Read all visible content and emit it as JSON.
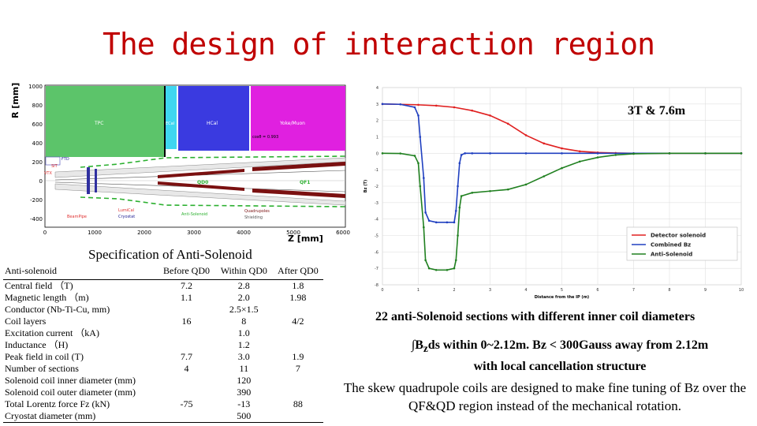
{
  "title": "The design of interaction region",
  "layout_figure": {
    "axis_y_label": "R [mm]",
    "axis_x_label": "Z [mm]",
    "y_ticks": [
      "1000",
      "800",
      "600",
      "400",
      "200",
      "0",
      "-200",
      "-400"
    ],
    "x_ticks": [
      "0",
      "1000",
      "2000",
      "3000",
      "4000",
      "5000",
      "6000"
    ],
    "regions": {
      "tpc": "TPC",
      "ecal": "ECal",
      "hcal": "HCal",
      "yoke": "Yoke/Muon",
      "ftd": "FTD",
      "sit": "SIT",
      "vtx": "VTX",
      "qd0": "QD0",
      "qf1": "QF1",
      "lumical": "LumiCal",
      "cryostat": "Cryostat",
      "beampipe": "BeamPipe",
      "anti_solenoid": "Anti-Solenoid",
      "quadrupoles": "Quadrupoles",
      "shielding": "Shielding",
      "cos_theta": "cosθ = 0.993"
    },
    "colors": {
      "tpc": "#5cc46a",
      "ecal": "#3fd6f0",
      "hcal": "#3a3ae0",
      "yoke": "#e020e0"
    }
  },
  "spec_caption": "Specification of Anti-Solenoid",
  "spec_table": {
    "headers": [
      "Anti-solenoid",
      "Before QD0",
      "Within QD0",
      "After QD0"
    ],
    "rows": [
      [
        "Central field （T)",
        "7.2",
        "2.8",
        "1.8"
      ],
      [
        "Magnetic length （m)",
        "1.1",
        "2.0",
        "1.98"
      ],
      [
        "Conductor (Nb-Ti-Cu, mm)",
        "",
        "2.5×1.5",
        ""
      ],
      [
        "Coil layers",
        "16",
        "8",
        "4/2"
      ],
      [
        "Excitation current （kA)",
        "",
        "1.0",
        ""
      ],
      [
        "Inductance （H)",
        "",
        "1.2",
        ""
      ],
      [
        "Peak field in coil (T)",
        "7.7",
        "3.0",
        "1.9"
      ],
      [
        "Number of sections",
        "4",
        "11",
        "7"
      ],
      [
        "Solenoid coil inner diameter (mm)",
        "",
        "120",
        ""
      ],
      [
        "Solenoid coil outer diameter (mm)",
        "",
        "390",
        ""
      ],
      [
        "Total Lorentz force Fz (kN)",
        "-75",
        "-13",
        "88"
      ],
      [
        "Cryostat diameter (mm)",
        "",
        "500",
        ""
      ]
    ]
  },
  "label_3t": "3T & 7.6m",
  "chart_data": {
    "type": "line",
    "xlabel": "Distance from the IP (m)",
    "ylabel": "Bz (T)",
    "xlim": [
      0,
      10
    ],
    "ylim": [
      -8,
      4
    ],
    "x_ticks": [
      0,
      1,
      2,
      3,
      4,
      5,
      6,
      7,
      8,
      9,
      10
    ],
    "y_ticks": [
      4,
      3,
      2,
      1,
      0,
      -1,
      -2,
      -3,
      -4,
      -5,
      -6,
      -7,
      -8
    ],
    "grid": true,
    "legend_position": "bottom-right",
    "series": [
      {
        "name": "Detector solenoid",
        "color": "#e02020",
        "x": [
          0,
          0.5,
          1,
          1.5,
          2,
          2.5,
          3,
          3.5,
          4,
          4.5,
          5,
          5.5,
          6,
          6.5,
          7,
          8,
          9,
          10
        ],
        "y": [
          3,
          2.98,
          2.95,
          2.9,
          2.8,
          2.6,
          2.3,
          1.8,
          1.1,
          0.6,
          0.3,
          0.12,
          0.05,
          0.02,
          0,
          0,
          0,
          0
        ]
      },
      {
        "name": "Combined Bz",
        "color": "#2040c0",
        "x": [
          0,
          0.5,
          0.9,
          1.0,
          1.05,
          1.15,
          1.2,
          1.3,
          1.5,
          1.8,
          2.0,
          2.05,
          2.1,
          2.15,
          2.2,
          2.3,
          2.5,
          3,
          4,
          5,
          6,
          7,
          8,
          9,
          10
        ],
        "y": [
          3,
          2.98,
          2.8,
          2.3,
          1.0,
          -1.5,
          -3.6,
          -4.1,
          -4.2,
          -4.2,
          -4.2,
          -3.5,
          -2,
          -0.6,
          -0.1,
          0,
          0,
          0,
          0,
          0,
          0,
          0,
          0,
          0,
          0
        ]
      },
      {
        "name": "Anti-Solenoid",
        "color": "#208020",
        "x": [
          0,
          0.5,
          0.9,
          1.0,
          1.05,
          1.15,
          1.2,
          1.3,
          1.5,
          1.8,
          2.0,
          2.05,
          2.1,
          2.15,
          2.2,
          2.5,
          3,
          3.5,
          4,
          4.5,
          5,
          5.5,
          6,
          6.5,
          7,
          8,
          9,
          10
        ],
        "y": [
          0,
          -0.01,
          -0.15,
          -0.6,
          -2,
          -4.5,
          -6.5,
          -7,
          -7.1,
          -7.1,
          -7,
          -6.5,
          -5,
          -3.3,
          -2.6,
          -2.4,
          -2.3,
          -2.2,
          -1.9,
          -1.4,
          -0.9,
          -0.5,
          -0.25,
          -0.1,
          -0.03,
          0,
          0,
          0
        ]
      }
    ]
  },
  "note1": {
    "bold_part": "22 anti-Solenoid",
    "rest": " sections with different inner coil diameters"
  },
  "note2": {
    "integral_symbol": "∫",
    "part1": "B",
    "sub": "z",
    "part2": "ds within 0~2.12m. Bz < 300Gauss away from 2.12m",
    "line2": "with local cancellation structure"
  },
  "note3": "The skew quadrupole coils are designed to make fine tuning of Bz over the QF&QD region instead of the mechanical rotation."
}
